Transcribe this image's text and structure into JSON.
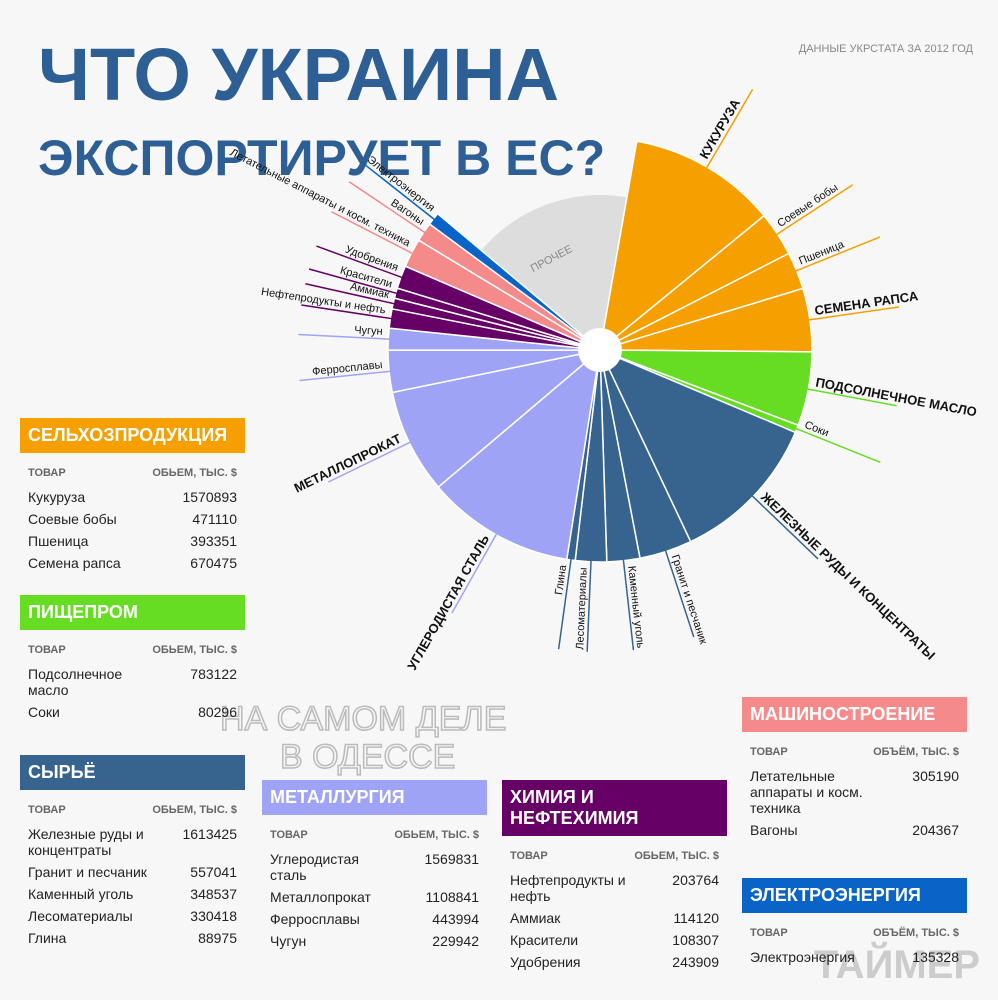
{
  "header": {
    "title_line1": "ЧТО УКРАИНА",
    "title_line2": "ЭКСПОРТИРУЕТ В ЕС?",
    "source": "ДАННЫЕ УКРСТАТА ЗА 2012 ГОД"
  },
  "chart_data": {
    "type": "polar",
    "other_label": "ПРОЧЕЕ",
    "groups": [
      {
        "name": "СЕЛЬХОЗПРОДУКЦИЯ",
        "color": "#f5a000",
        "col_item": "ТОВАР",
        "col_value": "ОБЬЕМ, ТЫС. $",
        "items": [
          {
            "label": "Кукуруза",
            "value": 1570893
          },
          {
            "label": "Соевые бобы",
            "value": 471110
          },
          {
            "label": "Пшеница",
            "value": 393351
          },
          {
            "label": "Семена рапса",
            "value": 670475
          }
        ]
      },
      {
        "name": "ПИЩЕПРОМ",
        "color": "#66dd22",
        "col_item": "ТОВАР",
        "col_value": "ОБЬЕМ, ТЫС. $",
        "items": [
          {
            "label": "Подсолнечное масло",
            "value": 783122
          },
          {
            "label": "Соки",
            "value": 80296
          }
        ]
      },
      {
        "name": "СЫРЬЁ",
        "color": "#36648f",
        "col_item": "ТОВАР",
        "col_value": "ОБЬЕМ, ТЫС. $",
        "items": [
          {
            "label": "Железные руды и концентраты",
            "value": 1613425
          },
          {
            "label": "Гранит и песчаник",
            "value": 557041
          },
          {
            "label": "Каменный уголь",
            "value": 348537
          },
          {
            "label": "Лесоматериалы",
            "value": 330418
          },
          {
            "label": "Глина",
            "value": 88975
          }
        ]
      },
      {
        "name": "МЕТАЛЛУРГИЯ",
        "color": "#9fa3f5",
        "col_item": "ТОВАР",
        "col_value": "ОБЬЕМ, ТЫС. $",
        "items": [
          {
            "label": "Углеродистая сталь",
            "value": 1569831
          },
          {
            "label": "Металлопрокат",
            "value": 1108841
          },
          {
            "label": "Ферросплавы",
            "value": 443994
          },
          {
            "label": "Чугун",
            "value": 229942
          }
        ]
      },
      {
        "name": "ХИМИЯ И НЕФТЕХИМИЯ",
        "color": "#660066",
        "col_item": "ТОВАР",
        "col_value": "ОБЬЕМ, ТЫС. $",
        "items": [
          {
            "label": "Нефтепродукты и нефть",
            "value": 203764
          },
          {
            "label": "Аммиак",
            "value": 114120
          },
          {
            "label": "Красители",
            "value": 108307
          },
          {
            "label": "Удобрения",
            "value": 243909
          }
        ]
      },
      {
        "name": "МАШИНОСТРОЕНИЕ",
        "color": "#f48a8a",
        "col_item": "ТОВАР",
        "col_value": "ОБЪЁМ, ТЫС. $",
        "items": [
          {
            "label": "Летательные аппараты и косм. техника",
            "value": 305190
          },
          {
            "label": "Вагоны",
            "value": 204367
          }
        ]
      },
      {
        "name": "ЭЛЕКТРОЭНЕРГИЯ",
        "color": "#0a64c8",
        "col_item": "ТОВАР",
        "col_value": "ОБЪЁМ, ТЫС. $",
        "items": [
          {
            "label": "Электроэнергия",
            "value": 135328
          }
        ]
      }
    ]
  },
  "watermark": {
    "line1": "НА САМОМ ДЕЛЕ",
    "line2": "В ОДЕССЕ",
    "brand": "ТАЙМЕР"
  }
}
